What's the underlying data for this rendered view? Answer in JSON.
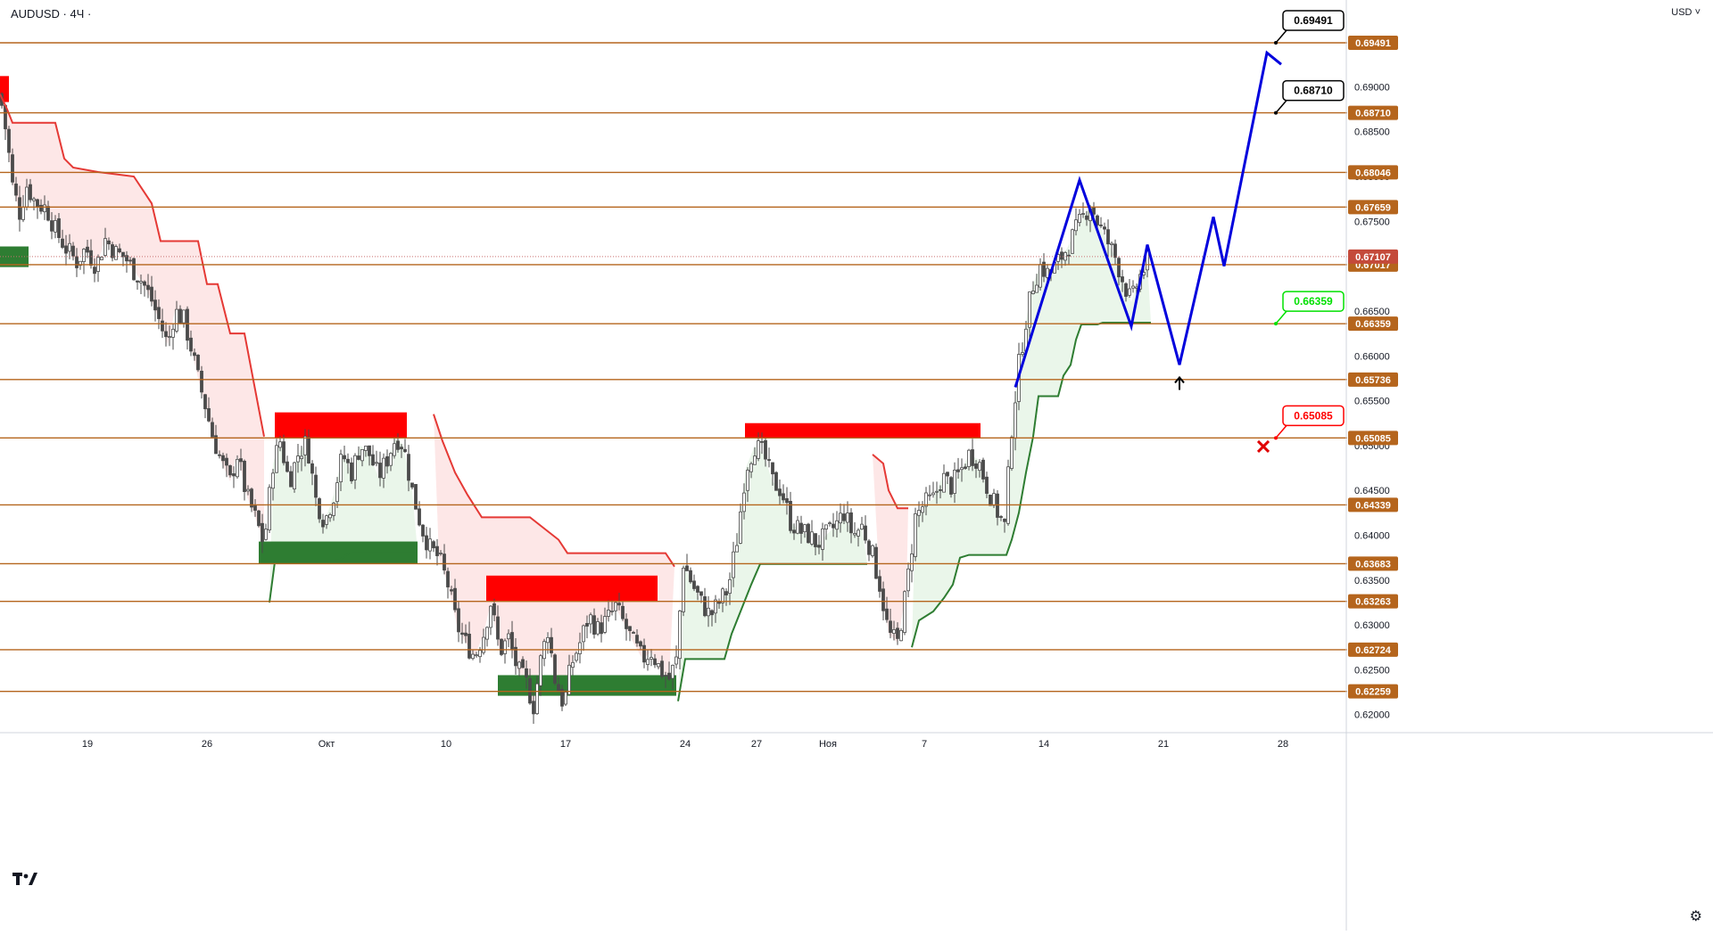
{
  "header": {
    "symbol": "AUDUSD · 4Ч ·",
    "currency": "USD"
  },
  "icons": {
    "logo": "tradingview-logo-icon",
    "settings": "gear-icon",
    "currency_menu": "chevron-down-icon"
  },
  "colors": {
    "level_line": "#b5651d",
    "level_badge": "#b5651d",
    "supply_zone": "#ff0000",
    "demand_zone": "#2e7d32",
    "bear_stop": "#e53935",
    "bull_stop": "#2e7d32",
    "bear_fill": "#fde3e3",
    "bull_fill": "#e6f4e6",
    "forecast_path": "#0000dd",
    "candle": "#4a4a4a",
    "callout_target": "#000000",
    "callout_pivot": "#00e000",
    "callout_stop": "#ff0000"
  },
  "chart_data": {
    "type": "candlestick",
    "symbol": "AUDUSD",
    "timeframe": "4Ч",
    "currency": "USD",
    "ylim": [
      0.6175,
      0.6985
    ],
    "y_ticks": [
      "0.62000",
      "0.62500",
      "0.63000",
      "0.63500",
      "0.64000",
      "0.64500",
      "0.65000",
      "0.65500",
      "0.66000",
      "0.66500",
      "0.67000",
      "0.67500",
      "0.68000",
      "0.68500",
      "0.69000"
    ],
    "x_ticks": [
      "19",
      "26",
      "Окт",
      "10",
      "17",
      "24",
      "27",
      "Ноя",
      "7",
      "14",
      "21",
      "28"
    ],
    "current_price": "0.67107",
    "levels": [
      "0.69491",
      "0.68710",
      "0.68046",
      "0.67659",
      "0.67017",
      "0.66359",
      "0.65736",
      "0.65085",
      "0.64339",
      "0.63683",
      "0.63263",
      "0.62724",
      "0.62259"
    ],
    "callouts": [
      {
        "label": "0.69491",
        "role": "target"
      },
      {
        "label": "0.68710",
        "role": "target"
      },
      {
        "label": "0.66359",
        "role": "pivot"
      },
      {
        "label": "0.65085",
        "role": "stop"
      }
    ],
    "zones": [
      {
        "type": "demand",
        "low": 0.6699,
        "high": 0.6722
      },
      {
        "type": "supply",
        "low": 0.6883,
        "high": 0.6912
      },
      {
        "type": "supply",
        "low": 0.6508,
        "high": 0.6537
      },
      {
        "type": "demand",
        "low": 0.6368,
        "high": 0.6393
      },
      {
        "type": "supply",
        "low": 0.6327,
        "high": 0.6355
      },
      {
        "type": "demand",
        "low": 0.6221,
        "high": 0.6244
      },
      {
        "type": "supply",
        "low": 0.6508,
        "high": 0.6525
      }
    ],
    "close_path": [
      [
        0,
        0.6892
      ],
      [
        8,
        0.6842
      ],
      [
        14,
        0.679
      ],
      [
        22,
        0.676
      ],
      [
        30,
        0.679
      ],
      [
        40,
        0.677
      ],
      [
        52,
        0.6765
      ],
      [
        62,
        0.674
      ],
      [
        74,
        0.672
      ],
      [
        86,
        0.6705
      ],
      [
        96,
        0.672
      ],
      [
        108,
        0.67
      ],
      [
        118,
        0.673
      ],
      [
        130,
        0.6715
      ],
      [
        140,
        0.671
      ],
      [
        150,
        0.6695
      ],
      [
        160,
        0.6682
      ],
      [
        170,
        0.6662
      ],
      [
        180,
        0.6635
      ],
      [
        188,
        0.6612
      ],
      [
        196,
        0.665
      ],
      [
        206,
        0.664
      ],
      [
        214,
        0.661
      ],
      [
        222,
        0.6575
      ],
      [
        230,
        0.6545
      ],
      [
        238,
        0.6512
      ],
      [
        248,
        0.6482
      ],
      [
        258,
        0.646
      ],
      [
        266,
        0.649
      ],
      [
        276,
        0.6445
      ],
      [
        286,
        0.642
      ],
      [
        296,
        0.639
      ],
      [
        306,
        0.648
      ],
      [
        314,
        0.6505
      ],
      [
        324,
        0.646
      ],
      [
        334,
        0.649
      ],
      [
        344,
        0.6505
      ],
      [
        354,
        0.644
      ],
      [
        364,
        0.6415
      ],
      [
        374,
        0.6445
      ],
      [
        384,
        0.649
      ],
      [
        394,
        0.647
      ],
      [
        404,
        0.65
      ],
      [
        414,
        0.649
      ],
      [
        424,
        0.6465
      ],
      [
        434,
        0.6485
      ],
      [
        444,
        0.651
      ],
      [
        452,
        0.65
      ],
      [
        462,
        0.645
      ],
      [
        472,
        0.641
      ],
      [
        482,
        0.6385
      ],
      [
        492,
        0.6375
      ],
      [
        502,
        0.6345
      ],
      [
        512,
        0.63
      ],
      [
        522,
        0.628
      ],
      [
        532,
        0.6265
      ],
      [
        542,
        0.629
      ],
      [
        550,
        0.6325
      ],
      [
        560,
        0.627
      ],
      [
        570,
        0.6285
      ],
      [
        580,
        0.625
      ],
      [
        590,
        0.6235
      ],
      [
        598,
        0.621
      ],
      [
        606,
        0.626
      ],
      [
        614,
        0.6295
      ],
      [
        622,
        0.624
      ],
      [
        632,
        0.621
      ],
      [
        640,
        0.6255
      ],
      [
        650,
        0.628
      ],
      [
        660,
        0.631
      ],
      [
        670,
        0.6295
      ],
      [
        680,
        0.6305
      ],
      [
        690,
        0.632
      ],
      [
        700,
        0.63
      ],
      [
        710,
        0.628
      ],
      [
        720,
        0.6262
      ],
      [
        730,
        0.627
      ],
      [
        740,
        0.625
      ],
      [
        750,
        0.624
      ],
      [
        758,
        0.626
      ],
      [
        766,
        0.637
      ],
      [
        776,
        0.6345
      ],
      [
        786,
        0.6325
      ],
      [
        796,
        0.631
      ],
      [
        806,
        0.6325
      ],
      [
        816,
        0.634
      ],
      [
        826,
        0.6395
      ],
      [
        836,
        0.6475
      ],
      [
        846,
        0.65
      ],
      [
        856,
        0.649
      ],
      [
        866,
        0.646
      ],
      [
        876,
        0.645
      ],
      [
        886,
        0.6415
      ],
      [
        896,
        0.6405
      ],
      [
        906,
        0.64
      ],
      [
        916,
        0.639
      ],
      [
        926,
        0.64
      ],
      [
        936,
        0.641
      ],
      [
        946,
        0.6425
      ],
      [
        956,
        0.64
      ],
      [
        966,
        0.641
      ],
      [
        976,
        0.6385
      ],
      [
        986,
        0.6345
      ],
      [
        996,
        0.629
      ],
      [
        1006,
        0.628
      ],
      [
        1016,
        0.634
      ],
      [
        1026,
        0.642
      ],
      [
        1036,
        0.6435
      ],
      [
        1046,
        0.644
      ],
      [
        1056,
        0.6465
      ],
      [
        1066,
        0.6455
      ],
      [
        1076,
        0.647
      ],
      [
        1086,
        0.649
      ],
      [
        1096,
        0.6485
      ],
      [
        1106,
        0.6455
      ],
      [
        1116,
        0.643
      ],
      [
        1126,
        0.641
      ],
      [
        1134,
        0.652
      ],
      [
        1142,
        0.659
      ],
      [
        1150,
        0.664
      ],
      [
        1158,
        0.668
      ],
      [
        1166,
        0.67
      ],
      [
        1176,
        0.669
      ],
      [
        1186,
        0.6705
      ],
      [
        1196,
        0.672
      ],
      [
        1206,
        0.674
      ],
      [
        1214,
        0.6755
      ],
      [
        1222,
        0.677
      ],
      [
        1230,
        0.675
      ],
      [
        1240,
        0.673
      ],
      [
        1250,
        0.671
      ],
      [
        1260,
        0.668
      ],
      [
        1268,
        0.666
      ],
      [
        1276,
        0.6685
      ],
      [
        1286,
        0.6705
      ]
    ],
    "bear_stop_segments": [
      [
        [
          0,
          0.6892
        ],
        [
          8,
          0.6875
        ],
        [
          14,
          0.686
        ],
        [
          62,
          0.686
        ],
        [
          72,
          0.682
        ],
        [
          82,
          0.681
        ],
        [
          110,
          0.6805
        ],
        [
          150,
          0.68
        ],
        [
          160,
          0.6785
        ],
        [
          170,
          0.677
        ],
        [
          180,
          0.6728
        ],
        [
          222,
          0.6728
        ],
        [
          232,
          0.668
        ],
        [
          244,
          0.668
        ],
        [
          258,
          0.6625
        ],
        [
          274,
          0.6625
        ],
        [
          296,
          0.651
        ]
      ],
      [
        [
          486,
          0.6535
        ],
        [
          496,
          0.6505
        ],
        [
          510,
          0.647
        ],
        [
          524,
          0.6445
        ],
        [
          540,
          0.642
        ],
        [
          594,
          0.642
        ],
        [
          626,
          0.6395
        ],
        [
          636,
          0.638
        ],
        [
          746,
          0.638
        ],
        [
          756,
          0.6365
        ]
      ],
      [
        [
          978,
          0.649
        ],
        [
          990,
          0.648
        ],
        [
          996,
          0.645
        ],
        [
          1006,
          0.643
        ],
        [
          1018,
          0.643
        ]
      ]
    ],
    "bull_stop_segments": [
      [
        [
          302,
          0.6325
        ],
        [
          308,
          0.637
        ],
        [
          380,
          0.6372
        ],
        [
          394,
          0.6382
        ],
        [
          468,
          0.6382
        ]
      ],
      [
        [
          760,
          0.6215
        ],
        [
          768,
          0.6262
        ],
        [
          812,
          0.6262
        ],
        [
          820,
          0.629
        ],
        [
          832,
          0.632
        ],
        [
          842,
          0.6345
        ],
        [
          852,
          0.6368
        ],
        [
          972,
          0.6368
        ]
      ],
      [
        [
          1022,
          0.6275
        ],
        [
          1030,
          0.6305
        ],
        [
          1046,
          0.6315
        ],
        [
          1058,
          0.633
        ],
        [
          1068,
          0.6345
        ],
        [
          1076,
          0.6375
        ],
        [
          1086,
          0.6378
        ],
        [
          1128,
          0.6378
        ],
        [
          1134,
          0.6395
        ],
        [
          1142,
          0.6425
        ],
        [
          1150,
          0.647
        ],
        [
          1158,
          0.651
        ],
        [
          1164,
          0.6555
        ],
        [
          1186,
          0.6555
        ],
        [
          1192,
          0.6578
        ],
        [
          1200,
          0.659
        ],
        [
          1206,
          0.6618
        ],
        [
          1212,
          0.6635
        ],
        [
          1230,
          0.6635
        ],
        [
          1236,
          0.6637
        ],
        [
          1290,
          0.6637
        ]
      ]
    ],
    "forecast_path": [
      [
        1138,
        0.6565
      ],
      [
        1210,
        0.6796
      ],
      [
        1268,
        0.6633
      ],
      [
        1286,
        0.6724
      ],
      [
        1322,
        0.659
      ],
      [
        1360,
        0.6755
      ],
      [
        1372,
        0.67
      ],
      [
        1420,
        0.6938
      ],
      [
        1436,
        0.6925
      ]
    ],
    "markers": [
      {
        "type": "arrow-up",
        "x": 1322,
        "y": 0.657
      },
      {
        "type": "cross",
        "x": 1416,
        "y": 0.6499
      }
    ]
  }
}
